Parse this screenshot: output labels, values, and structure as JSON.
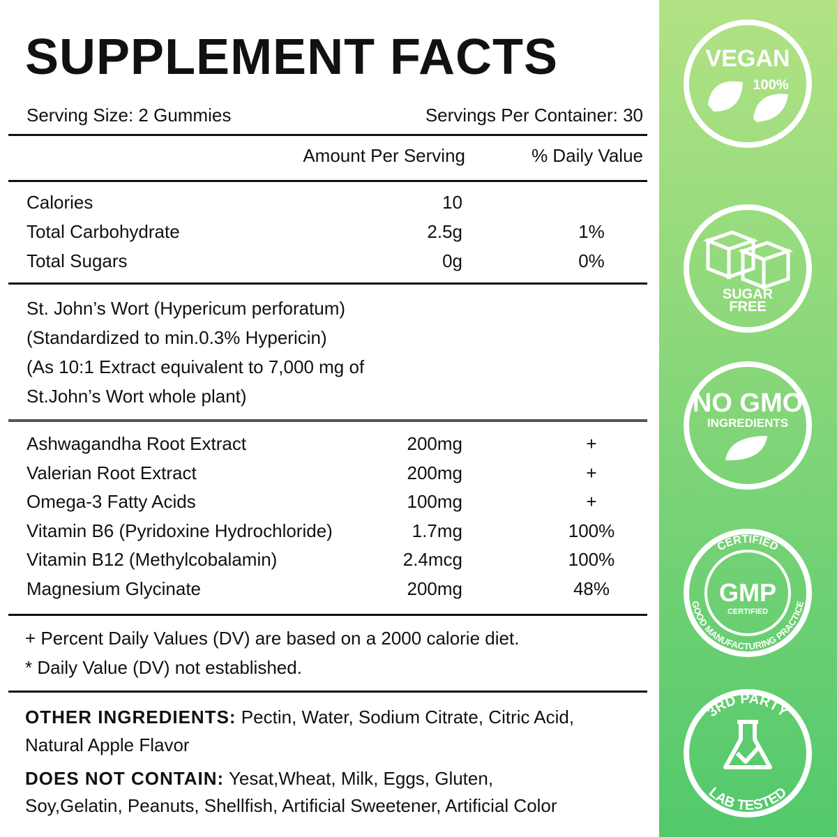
{
  "title": "SUPPLEMENT FACTS",
  "serving_size": "Serving Size: 2 Gummies",
  "servings_per_container": "Servings Per Container: 30",
  "header": {
    "amount": "Amount Per Serving",
    "dv": "% Daily Value"
  },
  "nutrition": [
    [
      "Calories",
      "10",
      ""
    ],
    [
      "Total Carbohydrate",
      "2.5g",
      "1%"
    ],
    [
      "Total Sugars",
      "0g",
      "0%"
    ]
  ],
  "extract": [
    "St. John’s Wort (Hypericum perforatum)",
    "(Standardized to min.0.3% Hypericin)",
    "(As 10:1 Extract equivalent to 7,000 mg of",
    "St.John’s Wort whole plant)"
  ],
  "ingredients": [
    [
      "Ashwagandha Root Extract",
      "200mg",
      "+"
    ],
    [
      "Valerian Root Extract",
      "200mg",
      "+"
    ],
    [
      "Omega-3 Fatty Acids",
      "100mg",
      "+"
    ],
    [
      "Vitamin B6 (Pyridoxine Hydrochloride)",
      "1.7mg",
      "100%"
    ],
    [
      "Vitamin B12 (Methylcobalamin)",
      "2.4mcg",
      "100%"
    ],
    [
      "Magnesium Glycinate",
      "200mg",
      "48%"
    ]
  ],
  "footnotes": [
    "+ Percent Daily Values (DV) are based on a 2000 calorie diet.",
    "* Daily Value (DV) not established."
  ],
  "other_ingredients": {
    "label": "OTHER INGREDIENTS:",
    "text": " Pectin, Water, Sodium Citrate, Citric Acid,",
    "text2": "Natural Apple Flavor"
  },
  "does_not_contain": {
    "label": "DOES NOT CONTAIN:",
    "text": " Yesat,Wheat, Milk, Eggs, Gluten,",
    "text2": "Soy,Gelatin, Peanuts, Shellfish, Artificial Sweetener, Artificial Color"
  },
  "badges": {
    "vegan": [
      "VEGAN",
      "100%"
    ],
    "sugar_free": [
      "SUGAR",
      "FREE"
    ],
    "no_gmo": [
      "NO GMO",
      "INGREDIENTS"
    ],
    "gmp": [
      "CERTIFIED",
      "GMP",
      "CERTIFIED",
      "GOOD MANUFACTURING PRACTICE"
    ],
    "lab": [
      "3RD PARTY",
      "LAB TESTED"
    ]
  }
}
